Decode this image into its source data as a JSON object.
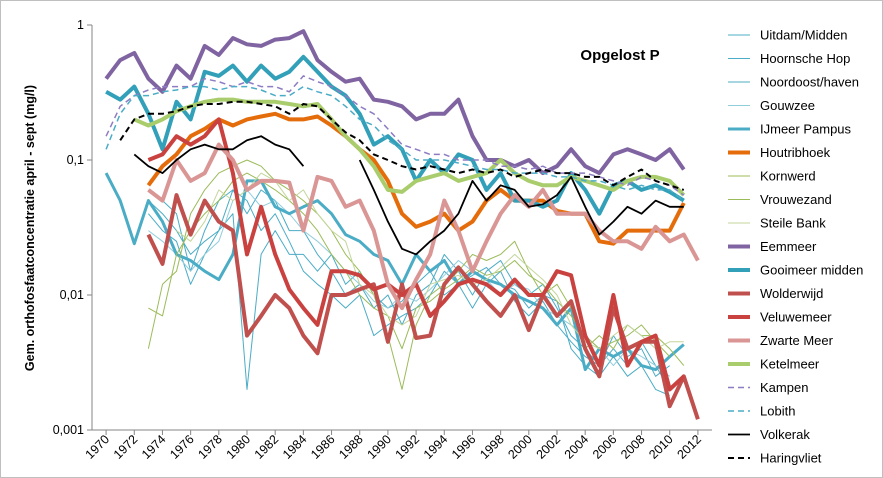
{
  "chart_data": {
    "type": "line",
    "annotation": "Opgelost P",
    "y_label": "Gem. orthofosfaatconcentratie april - sept (mg/l)",
    "log_y": true,
    "ylim": [
      0.001,
      1
    ],
    "yticks": [
      {
        "value": 0.001,
        "label": "0,001"
      },
      {
        "value": 0.01,
        "label": "0,01"
      },
      {
        "value": 0.1,
        "label": "0,1"
      },
      1
    ],
    "xlim": [
      1969,
      2013
    ],
    "xticks": [
      1970,
      1972,
      1974,
      1976,
      1978,
      1980,
      1982,
      1984,
      1986,
      1988,
      1990,
      1992,
      1994,
      1996,
      1998,
      2000,
      2002,
      2004,
      2006,
      2008,
      2010,
      2012
    ],
    "legend": "right",
    "x": [
      1970,
      1971,
      1972,
      1973,
      1974,
      1975,
      1976,
      1977,
      1978,
      1979,
      1980,
      1981,
      1982,
      1983,
      1984,
      1985,
      1986,
      1987,
      1988,
      1989,
      1990,
      1991,
      1992,
      1993,
      1994,
      1995,
      1996,
      1997,
      1998,
      1999,
      2000,
      2001,
      2002,
      2003,
      2004,
      2005,
      2006,
      2007,
      2008,
      2009,
      2010,
      2011,
      2012
    ],
    "series": [
      {
        "name": "Uitdam/Midden",
        "color": "#4bacc6",
        "width": 1,
        "dashed": false,
        "values": [
          null,
          null,
          null,
          0.05,
          0.04,
          0.03,
          0.02,
          0.025,
          0.03,
          0.04,
          0.002,
          0.02,
          0.03,
          0.02,
          0.02,
          0.015,
          0.02,
          0.012,
          0.015,
          0.01,
          0.008,
          0.009,
          0.012,
          0.015,
          0.01,
          0.012,
          0.014,
          0.016,
          0.012,
          0.011,
          0.008,
          0.01,
          0.009,
          0.004,
          0.003,
          0.0025,
          0.0035,
          0.0025,
          0.003,
          0.002,
          0.0018,
          null,
          null
        ]
      },
      {
        "name": "Hoornsche Hop",
        "color": "#4bacc6",
        "width": 1,
        "dashed": false,
        "values": [
          null,
          null,
          null,
          0.06,
          0.05,
          0.04,
          0.015,
          0.03,
          0.05,
          0.06,
          0.04,
          0.06,
          0.05,
          0.03,
          0.03,
          0.02,
          0.015,
          0.01,
          0.012,
          0.008,
          0.01,
          0.006,
          0.01,
          0.012,
          0.02,
          0.015,
          0.01,
          0.015,
          0.018,
          0.012,
          0.01,
          0.012,
          0.008,
          0.005,
          0.004,
          0.003,
          0.005,
          0.0035,
          0.004,
          0.0025,
          0.003,
          null,
          null
        ]
      },
      {
        "name": "Noordoost/haven",
        "color": "#4bacc6",
        "width": 1,
        "dashed": false,
        "values": [
          null,
          null,
          null,
          0.04,
          0.03,
          0.025,
          0.012,
          0.02,
          0.03,
          0.06,
          0.05,
          0.03,
          0.04,
          0.025,
          0.015,
          0.012,
          0.01,
          0.008,
          0.01,
          0.005,
          0.006,
          0.007,
          0.008,
          0.01,
          0.015,
          0.012,
          0.008,
          0.012,
          0.015,
          0.009,
          0.007,
          0.009,
          0.006,
          0.0045,
          0.0035,
          0.003,
          0.004,
          0.003,
          0.0045,
          0.003,
          0.002,
          null,
          null
        ]
      },
      {
        "name": "Gouwzee",
        "color": "#92cddc",
        "width": 1,
        "dashed": false,
        "values": [
          null,
          null,
          null,
          0.03,
          0.025,
          0.02,
          0.015,
          0.02,
          0.025,
          0.05,
          0.06,
          0.045,
          0.05,
          0.04,
          0.03,
          0.025,
          0.02,
          0.015,
          0.012,
          0.009,
          0.008,
          0.01,
          0.009,
          0.011,
          0.014,
          0.018,
          0.015,
          0.013,
          0.01,
          0.012,
          0.011,
          0.008,
          0.007,
          0.006,
          0.005,
          0.004,
          0.003,
          0.004,
          0.0035,
          0.003,
          0.0025,
          null,
          null
        ]
      },
      {
        "name": "IJmeer Pampus",
        "color": "#4bacc6",
        "width": 3,
        "dashed": false,
        "values": [
          0.08,
          0.05,
          0.024,
          0.05,
          0.035,
          0.02,
          0.018,
          0.015,
          0.013,
          0.02,
          0.07,
          0.07,
          0.045,
          0.04,
          0.045,
          0.05,
          0.04,
          0.028,
          0.025,
          0.02,
          0.018,
          0.012,
          0.02,
          0.015,
          0.018,
          0.012,
          0.015,
          0.013,
          0.012,
          0.01,
          0.009,
          0.008,
          0.006,
          0.008,
          0.0028,
          0.004,
          0.0035,
          0.004,
          0.003,
          0.0028,
          0.0035,
          0.0043,
          null
        ]
      },
      {
        "name": "Houtribhoek",
        "color": "#e46c0a",
        "width": 4,
        "dashed": false,
        "values": [
          null,
          null,
          null,
          0.065,
          0.09,
          0.11,
          0.15,
          0.17,
          0.2,
          0.18,
          0.2,
          0.21,
          0.22,
          0.2,
          0.2,
          0.21,
          0.18,
          0.15,
          0.12,
          0.1,
          0.07,
          0.04,
          0.032,
          0.035,
          0.04,
          0.03,
          0.035,
          0.05,
          0.06,
          0.05,
          0.05,
          0.05,
          0.042,
          0.04,
          0.04,
          0.025,
          0.024,
          0.03,
          0.03,
          0.03,
          0.03,
          0.048,
          null
        ]
      },
      {
        "name": "Kornwerd",
        "color": "#9bbb59",
        "width": 1,
        "dashed": false,
        "values": [
          null,
          null,
          null,
          0.004,
          0.012,
          0.015,
          0.04,
          0.06,
          0.08,
          0.09,
          0.1,
          0.09,
          0.07,
          0.06,
          0.05,
          0.04,
          0.03,
          0.02,
          0.015,
          0.01,
          0.005,
          0.002,
          0.006,
          0.01,
          0.012,
          0.015,
          0.02,
          0.018,
          0.02,
          0.025,
          0.015,
          0.01,
          0.012,
          0.008,
          0.004,
          0.005,
          0.004,
          0.006,
          0.005,
          0.005,
          0.004,
          0.003,
          null
        ]
      },
      {
        "name": "Vrouwezand",
        "color": "#9bbb59",
        "width": 1,
        "dashed": false,
        "values": [
          null,
          null,
          null,
          0.008,
          0.007,
          0.02,
          0.03,
          0.04,
          0.05,
          0.07,
          0.08,
          0.07,
          0.06,
          0.05,
          0.04,
          0.03,
          0.02,
          0.015,
          0.01,
          0.008,
          0.007,
          0.004,
          0.008,
          0.009,
          0.011,
          0.013,
          0.016,
          0.014,
          0.015,
          0.018,
          0.014,
          0.012,
          0.009,
          0.007,
          0.005,
          0.004,
          0.0045,
          0.005,
          0.006,
          0.0045,
          0.0035,
          null,
          null
        ]
      },
      {
        "name": "Steile Bank",
        "color": "#c3d69b",
        "width": 1,
        "dashed": false,
        "values": [
          null,
          null,
          null,
          null,
          null,
          0.03,
          0.025,
          0.035,
          0.06,
          0.05,
          0.06,
          0.08,
          0.07,
          0.05,
          0.06,
          0.04,
          0.03,
          0.025,
          0.012,
          0.01,
          0.007,
          0.006,
          0.007,
          0.012,
          0.013,
          0.014,
          0.012,
          0.013,
          0.016,
          0.02,
          0.016,
          0.013,
          0.01,
          0.006,
          0.0045,
          0.004,
          0.005,
          0.006,
          0.005,
          0.004,
          0.0045,
          0.0045,
          null
        ]
      },
      {
        "name": "Eemmeer",
        "color": "#8064a2",
        "width": 4,
        "dashed": false,
        "values": [
          0.4,
          0.55,
          0.62,
          0.4,
          0.32,
          0.5,
          0.4,
          0.7,
          0.6,
          0.8,
          0.72,
          0.7,
          0.78,
          0.8,
          0.9,
          0.55,
          0.45,
          0.38,
          0.4,
          0.28,
          0.27,
          0.25,
          0.2,
          0.22,
          0.22,
          0.28,
          0.15,
          0.1,
          0.1,
          0.09,
          0.1,
          0.08,
          0.09,
          0.12,
          0.09,
          0.08,
          0.11,
          0.12,
          0.11,
          0.1,
          0.12,
          0.085,
          null
        ]
      },
      {
        "name": "Gooimeer midden",
        "color": "#31a0b8",
        "width": 4,
        "dashed": false,
        "values": [
          0.32,
          0.28,
          0.35,
          0.22,
          0.12,
          0.27,
          0.2,
          0.45,
          0.42,
          0.5,
          0.38,
          0.5,
          0.4,
          0.45,
          0.58,
          0.45,
          0.35,
          0.3,
          0.22,
          0.13,
          0.15,
          0.12,
          0.07,
          0.1,
          0.08,
          0.11,
          0.1,
          0.06,
          0.08,
          0.05,
          0.05,
          0.045,
          0.05,
          0.08,
          0.06,
          0.04,
          0.065,
          0.07,
          0.06,
          0.065,
          0.058,
          0.05,
          null
        ]
      },
      {
        "name": "Wolderwijd",
        "color": "#c0504d",
        "width": 4,
        "dashed": false,
        "values": [
          null,
          null,
          null,
          0.028,
          0.017,
          0.055,
          0.028,
          0.05,
          0.035,
          0.03,
          0.005,
          0.007,
          0.01,
          0.008,
          0.005,
          0.0037,
          0.01,
          0.01,
          0.011,
          0.012,
          0.0045,
          0.012,
          0.0048,
          0.005,
          0.012,
          0.016,
          0.012,
          0.009,
          0.007,
          0.01,
          0.0055,
          0.01,
          0.007,
          0.009,
          0.004,
          0.0025,
          0.008,
          0.004,
          0.0045,
          0.0045,
          0.0015,
          0.0025,
          0.0012
        ]
      },
      {
        "name": "Veluwemeer",
        "color": "#c9423f",
        "width": 4,
        "dashed": false,
        "values": [
          null,
          null,
          null,
          0.1,
          0.11,
          0.15,
          0.13,
          0.15,
          0.2,
          0.08,
          0.02,
          0.045,
          0.02,
          0.011,
          0.008,
          0.006,
          0.015,
          0.015,
          0.014,
          0.011,
          0.012,
          0.01,
          0.012,
          0.007,
          0.009,
          0.012,
          0.013,
          0.012,
          0.01,
          0.013,
          0.01,
          0.01,
          0.015,
          0.014,
          0.005,
          0.003,
          0.01,
          0.003,
          0.0045,
          0.005,
          0.002,
          0.0025,
          null
        ]
      },
      {
        "name": "Zwarte Meer",
        "color": "#d99694",
        "width": 4,
        "dashed": false,
        "values": [
          null,
          null,
          null,
          0.06,
          0.05,
          0.1,
          0.07,
          0.08,
          0.13,
          0.1,
          0.06,
          0.07,
          0.07,
          0.068,
          0.03,
          0.075,
          0.07,
          0.045,
          0.05,
          0.03,
          0.012,
          0.008,
          0.013,
          0.02,
          0.05,
          0.03,
          0.015,
          0.025,
          0.04,
          0.055,
          0.045,
          0.06,
          0.04,
          0.04,
          0.04,
          0.03,
          0.025,
          0.025,
          0.022,
          0.032,
          0.025,
          0.028,
          0.018
        ]
      },
      {
        "name": "Ketelmeer",
        "color": "#a9cd6c",
        "width": 4,
        "dashed": false,
        "values": [
          null,
          null,
          0.2,
          0.18,
          0.2,
          0.23,
          0.25,
          0.27,
          0.28,
          0.28,
          0.27,
          0.27,
          0.27,
          0.26,
          0.25,
          0.26,
          0.2,
          0.15,
          0.12,
          0.09,
          0.06,
          0.058,
          0.07,
          0.075,
          0.08,
          0.07,
          0.075,
          0.08,
          0.1,
          0.08,
          0.07,
          0.065,
          0.065,
          0.075,
          0.07,
          0.065,
          0.06,
          0.07,
          0.075,
          0.075,
          0.07,
          0.055,
          null
        ]
      },
      {
        "name": "Kampen",
        "color": "#8e7cc3",
        "width": 1.5,
        "dashed": true,
        "values": [
          0.15,
          0.25,
          0.3,
          0.33,
          0.35,
          0.35,
          0.35,
          0.4,
          0.38,
          0.35,
          0.38,
          0.35,
          0.35,
          0.32,
          0.42,
          0.38,
          0.35,
          0.3,
          0.25,
          0.22,
          0.17,
          0.13,
          0.12,
          0.11,
          0.11,
          0.1,
          0.1,
          0.1,
          0.09,
          0.09,
          0.085,
          0.09,
          0.08,
          0.08,
          0.08,
          0.075,
          0.07,
          0.065,
          0.075,
          0.07,
          0.065,
          0.055,
          null
        ]
      },
      {
        "name": "Lobith",
        "color": "#4bacc6",
        "width": 1.5,
        "dashed": true,
        "values": [
          0.12,
          0.22,
          0.3,
          0.3,
          0.32,
          0.33,
          0.35,
          0.35,
          0.33,
          0.35,
          0.35,
          0.33,
          0.3,
          0.3,
          0.35,
          0.32,
          0.3,
          0.25,
          0.2,
          0.18,
          0.14,
          0.12,
          0.1,
          0.1,
          0.1,
          0.095,
          0.09,
          0.085,
          0.085,
          0.08,
          0.08,
          0.08,
          0.075,
          0.075,
          0.07,
          0.07,
          0.065,
          0.06,
          0.065,
          0.06,
          0.06,
          0.05,
          null
        ]
      },
      {
        "name": "Volkerak",
        "color": "#000000",
        "width": 1.8,
        "dashed": false,
        "values": [
          null,
          null,
          0.11,
          0.09,
          0.08,
          0.1,
          0.12,
          0.13,
          0.12,
          0.12,
          0.14,
          0.15,
          0.13,
          0.12,
          0.09,
          null,
          null,
          null,
          0.1,
          0.06,
          0.035,
          0.022,
          0.02,
          0.025,
          0.03,
          0.04,
          0.07,
          0.05,
          0.065,
          0.06,
          0.045,
          0.047,
          0.055,
          0.075,
          0.045,
          0.028,
          0.035,
          0.045,
          0.04,
          0.05,
          0.045,
          0.045,
          null
        ]
      },
      {
        "name": "Haringvliet",
        "color": "#000000",
        "width": 2,
        "dashed": true,
        "values": [
          null,
          0.14,
          0.2,
          0.22,
          0.22,
          0.23,
          0.25,
          0.26,
          0.26,
          0.27,
          0.27,
          0.26,
          0.25,
          0.22,
          0.26,
          0.25,
          0.2,
          0.16,
          0.14,
          0.11,
          0.1,
          0.09,
          0.085,
          0.09,
          0.085,
          0.08,
          0.085,
          0.08,
          0.085,
          0.075,
          0.08,
          0.085,
          0.08,
          0.08,
          0.075,
          0.075,
          0.065,
          0.075,
          0.085,
          0.07,
          0.065,
          0.06,
          null
        ]
      }
    ]
  }
}
